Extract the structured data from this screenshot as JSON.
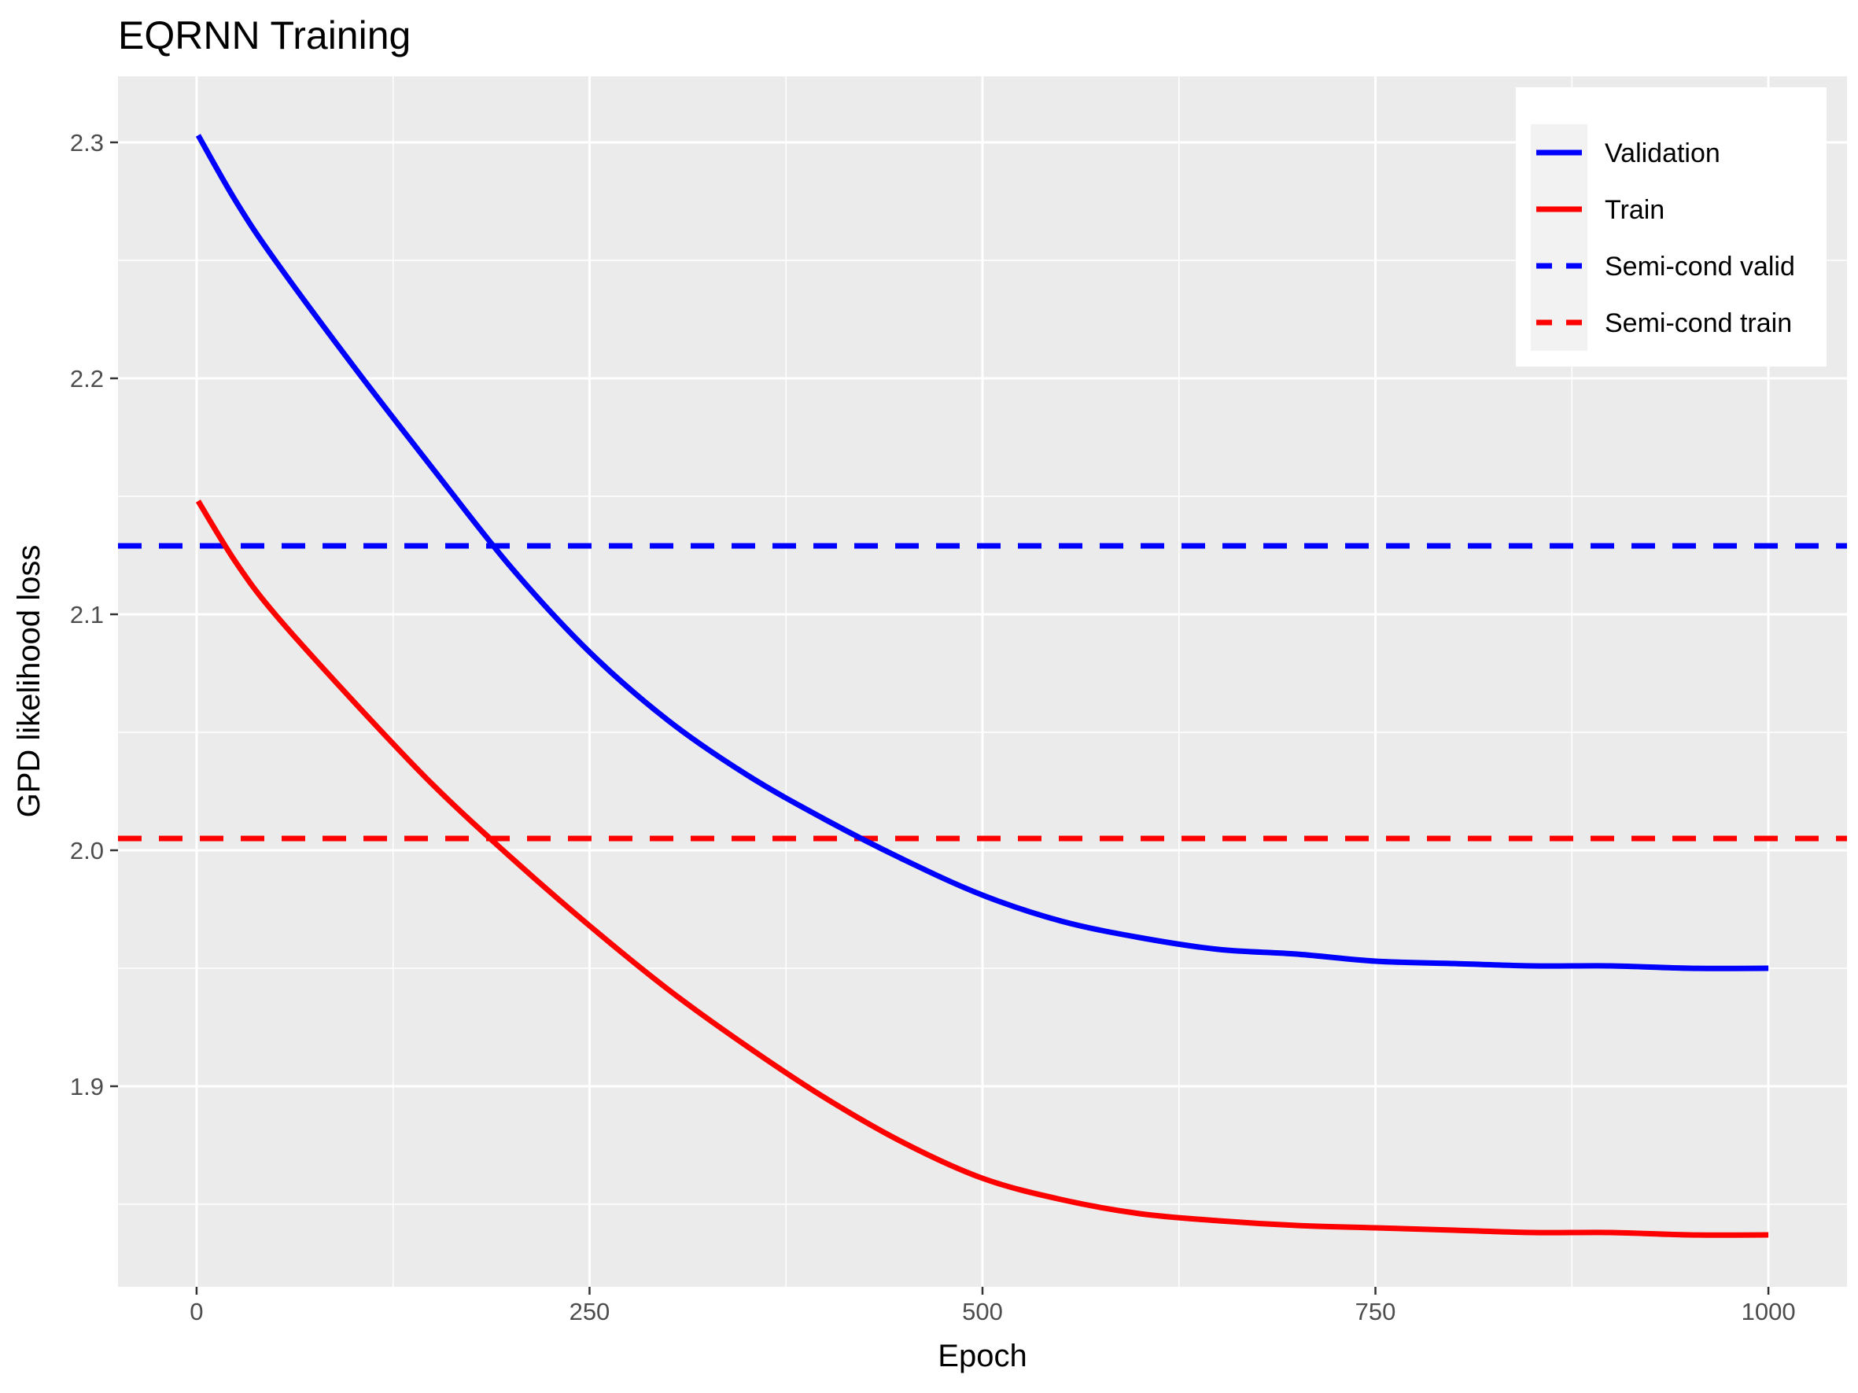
{
  "chart_data": {
    "type": "line",
    "title": "EQRNN Training",
    "xlabel": "Epoch",
    "ylabel": "GPD likelihood loss",
    "xlim": [
      -50,
      1050
    ],
    "ylim": [
      1.815,
      2.328
    ],
    "x_ticks": [
      0,
      250,
      500,
      750,
      1000
    ],
    "x_tick_labels": [
      "0",
      "250",
      "500",
      "750",
      "1000"
    ],
    "y_ticks": [
      1.9,
      2.0,
      2.1,
      2.2,
      2.3
    ],
    "y_tick_labels": [
      "1.9",
      "2.0",
      "2.1",
      "2.2",
      "2.3"
    ],
    "grid": true,
    "legend_position": "top-right",
    "series": [
      {
        "name": "Validation",
        "color": "#0000ff",
        "style": "solid",
        "x": [
          1,
          25,
          50,
          100,
          150,
          200,
          250,
          300,
          350,
          400,
          450,
          500,
          550,
          600,
          650,
          700,
          750,
          800,
          850,
          900,
          950,
          1000
        ],
        "y": [
          2.303,
          2.275,
          2.25,
          2.205,
          2.162,
          2.12,
          2.084,
          2.055,
          2.032,
          2.013,
          1.996,
          1.981,
          1.97,
          1.963,
          1.958,
          1.956,
          1.953,
          1.952,
          1.951,
          1.951,
          1.95,
          1.95
        ]
      },
      {
        "name": "Train",
        "color": "#ff0000",
        "style": "solid",
        "x": [
          1,
          25,
          50,
          100,
          150,
          200,
          250,
          300,
          350,
          400,
          450,
          500,
          550,
          600,
          650,
          700,
          750,
          800,
          850,
          900,
          950,
          1000
        ],
        "y": [
          2.148,
          2.122,
          2.1,
          2.063,
          2.028,
          1.997,
          1.968,
          1.941,
          1.917,
          1.895,
          1.876,
          1.861,
          1.852,
          1.846,
          1.843,
          1.841,
          1.84,
          1.839,
          1.838,
          1.838,
          1.837,
          1.837
        ]
      },
      {
        "name": "Semi-cond valid",
        "color": "#0000ff",
        "style": "dashed",
        "y": 2.129
      },
      {
        "name": "Semi-cond train",
        "color": "#ff0000",
        "style": "dashed",
        "y": 2.005
      }
    ]
  }
}
